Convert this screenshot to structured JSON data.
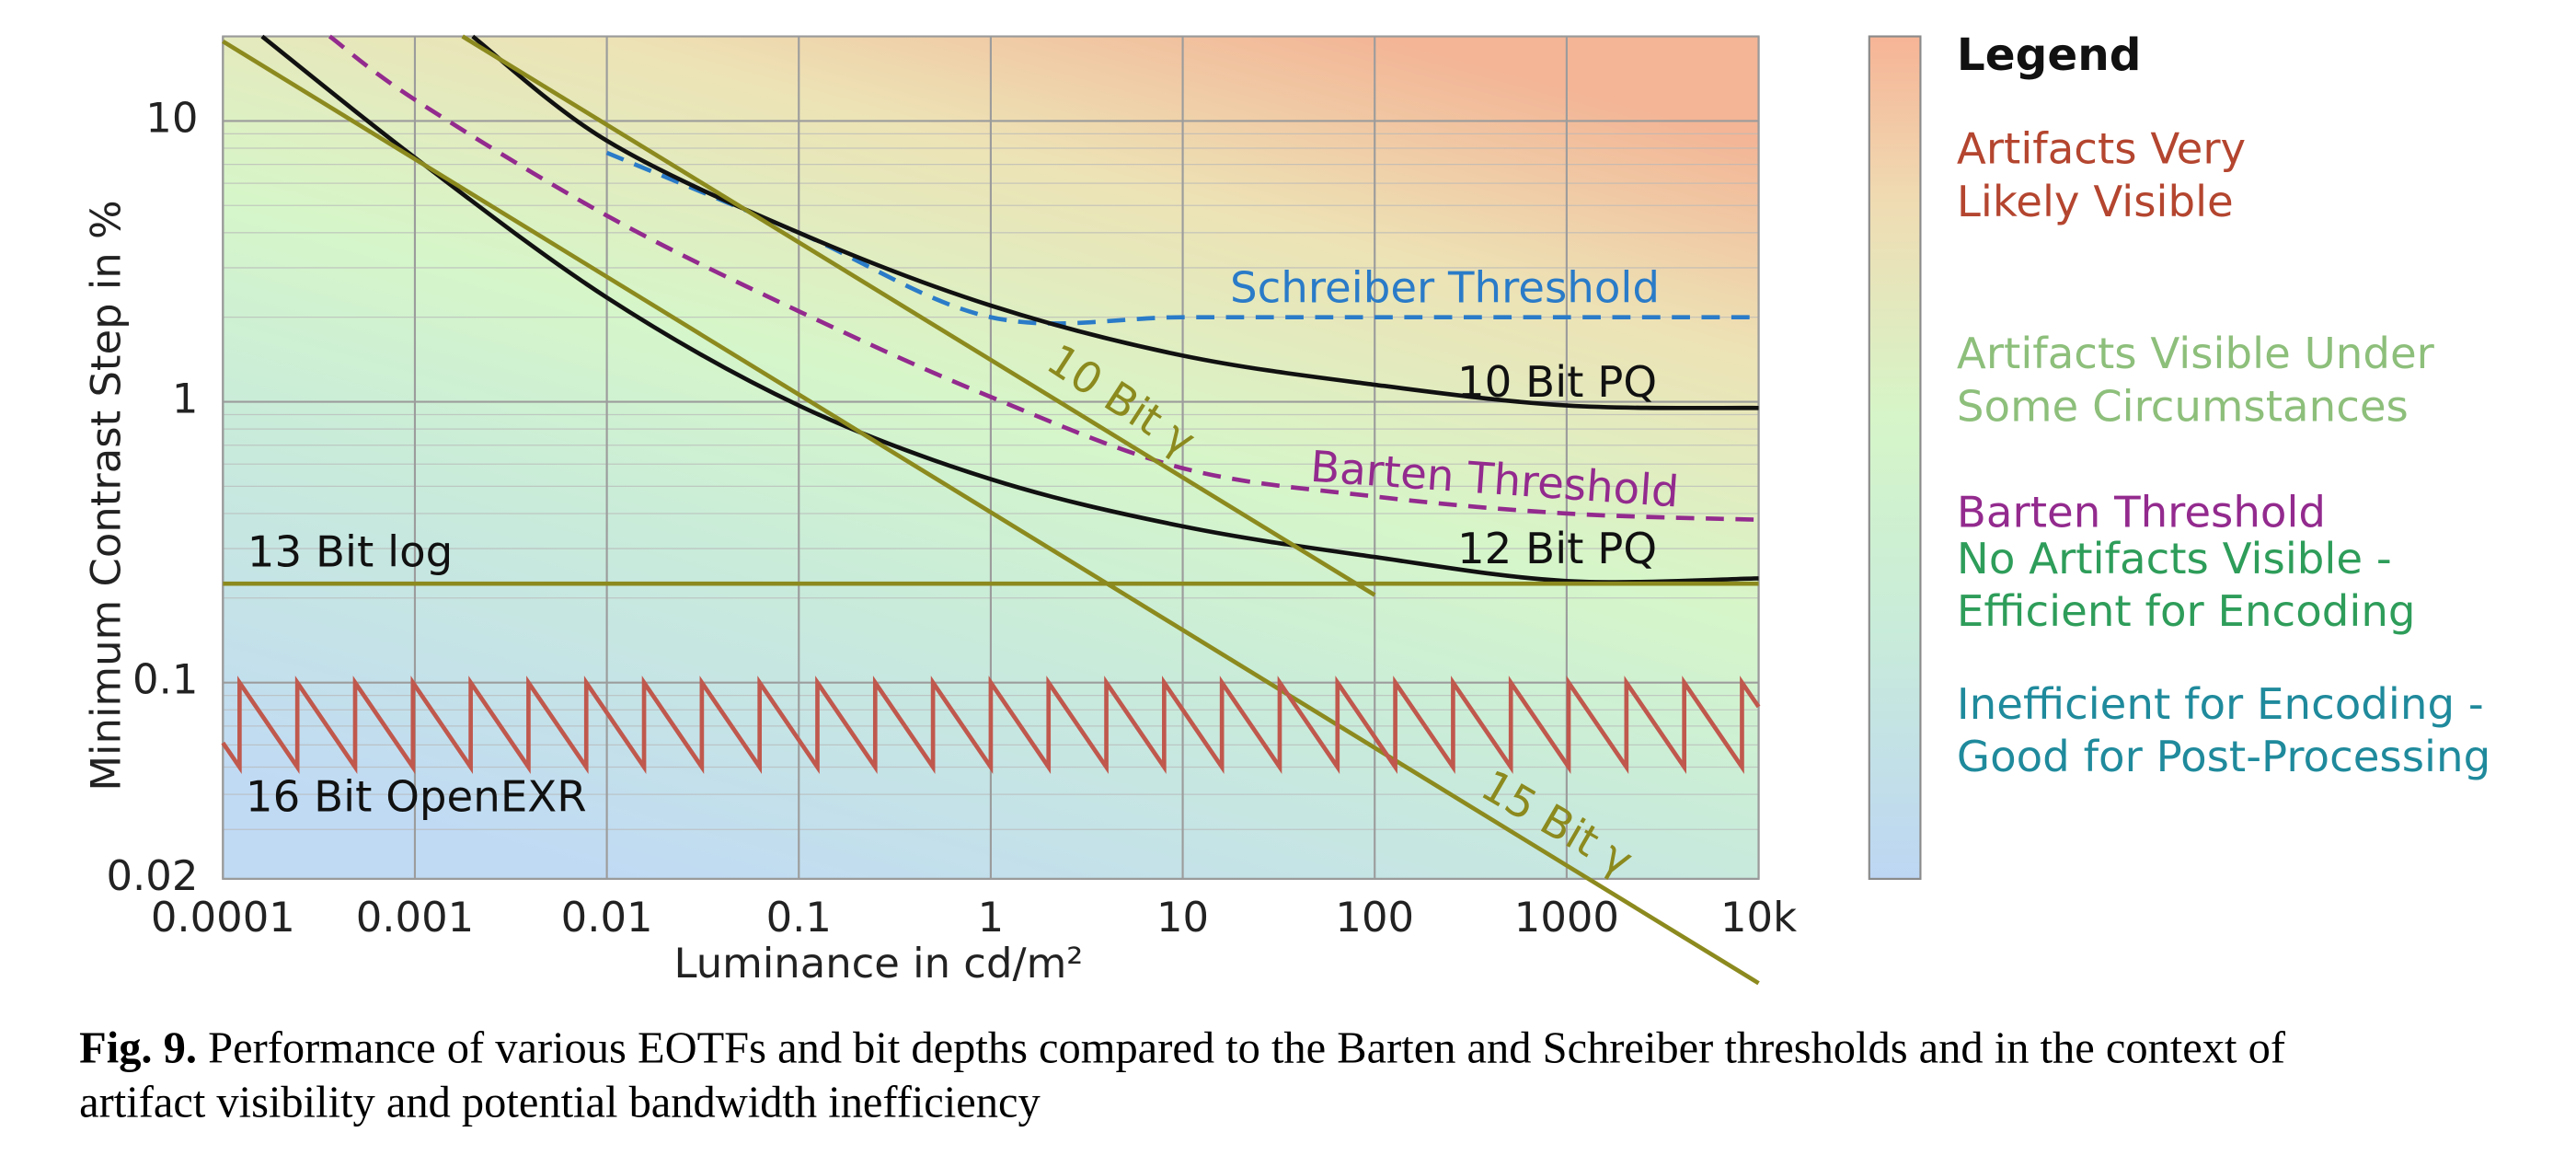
{
  "chart_data": {
    "type": "line",
    "xlabel": "Luminance in cd/m²",
    "ylabel": "Minimum Contrast Step in %",
    "log_x": true,
    "log_y": true,
    "grid": true,
    "xlim": [
      0.0001,
      10000
    ],
    "ylim": [
      0.02,
      20
    ],
    "xticks": [
      0.0001,
      0.001,
      0.01,
      0.1,
      1,
      10,
      100,
      1000,
      {
        "value": 10000,
        "label": "10k"
      }
    ],
    "yticks": [
      0.02,
      0.1,
      1,
      10
    ],
    "yminor_ticks": [
      0.03,
      0.04,
      0.05,
      0.06,
      0.07,
      0.08,
      0.09,
      0.2,
      0.3,
      0.4,
      0.5,
      0.6,
      0.7,
      0.8,
      0.9,
      2,
      3,
      4,
      5,
      6,
      7,
      8,
      9
    ],
    "series": [
      {
        "name": "Schreiber Threshold",
        "color": "#2a7bc8",
        "dashed": true,
        "smooth": true,
        "x": [
          0.01,
          0.1,
          1,
          10,
          100,
          1000,
          10000
        ],
        "values": [
          7.7,
          4.0,
          2.0,
          2,
          2,
          2,
          2
        ]
      },
      {
        "name": "10 Bit PQ",
        "color": "#111111",
        "dashed": false,
        "smooth": true,
        "x": [
          0.002,
          0.01,
          0.1,
          1,
          10,
          100,
          1000,
          10000
        ],
        "values": [
          20,
          8.5,
          4.0,
          2.2,
          1.46,
          1.15,
          0.97,
          0.95
        ]
      },
      {
        "name": "Barten Threshold",
        "color": "#932a8e",
        "dashed": true,
        "smooth": true,
        "x": [
          0.00036,
          0.001,
          0.01,
          0.1,
          1,
          10,
          100,
          1000,
          10000
        ],
        "values": [
          20,
          11.9,
          4.6,
          2.1,
          1.04,
          0.58,
          0.46,
          0.4,
          0.38
        ]
      },
      {
        "name": "12 Bit PQ",
        "color": "#111111",
        "dashed": false,
        "smooth": true,
        "x": [
          0.00016,
          0.001,
          0.01,
          0.1,
          1,
          10,
          100,
          1000,
          10000
        ],
        "values": [
          20,
          7.4,
          2.35,
          0.97,
          0.53,
          0.36,
          0.28,
          0.23,
          0.235
        ]
      },
      {
        "name": "10 Bit γ",
        "color": "#8c8a1e",
        "dashed": false,
        "smooth": false,
        "x": [
          0.00177,
          100
        ],
        "values": [
          20,
          0.205
        ]
      },
      {
        "name": "15 Bit γ",
        "color": "#8c8a1e",
        "dashed": false,
        "smooth": false,
        "x": [
          0.0001,
          10000
        ],
        "values": [
          19.2,
          0.0085
        ]
      },
      {
        "name": "13 Bit log",
        "color": "#8c8a1e",
        "dashed": false,
        "smooth": false,
        "x": [
          0.0001,
          10000
        ],
        "values": [
          0.225,
          0.225
        ]
      },
      {
        "name": "16 Bit OpenEXR",
        "color": "#c0584d",
        "dashed": false,
        "smooth": false,
        "x": [
          0.0001,
          0.00012207,
          0.00012207,
          0.00024414,
          0.00024414,
          0.00048828,
          0.00048828,
          0.00097656,
          0.00097656,
          0.0019531,
          0.0019531,
          0.0039063,
          0.0039063,
          0.0078125,
          0.0078125,
          0.015625,
          0.015625,
          0.03125,
          0.03125,
          0.0625,
          0.0625,
          0.125,
          0.125,
          0.25,
          0.25,
          0.5,
          0.5,
          1,
          1,
          2,
          2,
          4,
          4,
          8,
          8,
          16,
          16,
          32,
          32,
          64,
          64,
          128,
          128,
          256,
          256,
          512,
          512,
          1024,
          1024,
          2048,
          2048,
          4096,
          4096,
          8192,
          8192,
          10000
        ],
        "values": [
          0.061,
          0.05,
          0.1,
          0.05,
          0.1,
          0.05,
          0.1,
          0.05,
          0.1,
          0.05,
          0.1,
          0.05,
          0.1,
          0.05,
          0.1,
          0.05,
          0.1,
          0.05,
          0.1,
          0.05,
          0.1,
          0.05,
          0.1,
          0.05,
          0.1,
          0.05,
          0.1,
          0.05,
          0.1,
          0.05,
          0.1,
          0.05,
          0.1,
          0.05,
          0.1,
          0.05,
          0.1,
          0.05,
          0.1,
          0.05,
          0.1,
          0.05,
          0.1,
          0.05,
          0.1,
          0.05,
          0.1,
          0.05,
          0.1,
          0.05,
          0.1,
          0.05,
          0.1,
          0.05,
          0.1,
          0.082
        ]
      }
    ],
    "legend": {
      "title": "Legend",
      "items": [
        {
          "lines": [
            "Artifacts Very",
            "Likely Visible"
          ],
          "color": "#b4452f"
        },
        {
          "lines": [
            "Artifacts Visible Under",
            "Some Circumstances"
          ],
          "color": "#8dbf7b"
        },
        {
          "lines": [
            "Barten Threshold"
          ],
          "color": "#932a8e"
        },
        {
          "lines": [
            "No Artifacts Visible -",
            "Efficient for Encoding"
          ],
          "color": "#2e9d5a"
        },
        {
          "lines": [
            "Inefficient for Encoding -",
            "Good for Post-Processing"
          ],
          "color": "#1f8a9c"
        }
      ]
    }
  },
  "caption": {
    "label": "Fig. 9.",
    "lines": [
      "Performance of various EOTFs and bit depths compared to the Barten and Schreiber thresholds and in the context of",
      "artifact visibility and potential bandwidth inefficiency"
    ]
  }
}
